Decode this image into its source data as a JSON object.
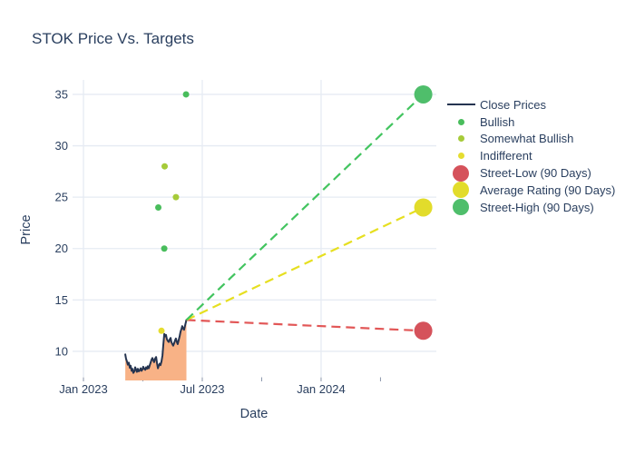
{
  "chart_data": {
    "type": "line",
    "title": "STOK Price Vs. Targets",
    "xlabel": "Date",
    "ylabel": "Price",
    "background": "#ffffff",
    "grid_color": "#e6ebf3",
    "tick_mark_color": "#8b96ab",
    "text_color": "#2a3f5f",
    "x_axis": {
      "range_months_from_jan2023": [
        -0.55,
        17.82
      ],
      "major_ticks": [
        {
          "m": 0,
          "label": "Jan 2023"
        },
        {
          "m": 6,
          "label": "Jul 2023"
        },
        {
          "m": 12,
          "label": "Jan 2024"
        }
      ],
      "minor_tick_months": [
        0,
        3,
        6,
        9,
        12,
        15
      ]
    },
    "y_axis": {
      "range": [
        7.52,
        36.41
      ],
      "ticks": [
        10,
        15,
        20,
        25,
        30,
        35
      ]
    },
    "close_prices": {
      "label": "Close Prices",
      "line_color": "#253450",
      "fill_color": "#f8b286",
      "points_month_price": [
        [
          2.11,
          9.7
        ],
        [
          2.15,
          9.3
        ],
        [
          2.2,
          9.0
        ],
        [
          2.24,
          8.7
        ],
        [
          2.29,
          8.9
        ],
        [
          2.34,
          8.4
        ],
        [
          2.38,
          8.6
        ],
        [
          2.43,
          8.1
        ],
        [
          2.47,
          8.3
        ],
        [
          2.52,
          7.9
        ],
        [
          2.57,
          8.05
        ],
        [
          2.61,
          8.45
        ],
        [
          2.66,
          8.2
        ],
        [
          2.7,
          8.0
        ],
        [
          2.75,
          8.3
        ],
        [
          2.79,
          8.05
        ],
        [
          2.84,
          8.15
        ],
        [
          2.89,
          8.35
        ],
        [
          2.93,
          8.1
        ],
        [
          2.98,
          8.25
        ],
        [
          3.02,
          8.5
        ],
        [
          3.07,
          8.3
        ],
        [
          3.12,
          8.2
        ],
        [
          3.16,
          8.45
        ],
        [
          3.21,
          8.3
        ],
        [
          3.25,
          8.55
        ],
        [
          3.3,
          8.35
        ],
        [
          3.34,
          8.6
        ],
        [
          3.39,
          8.9
        ],
        [
          3.44,
          9.2
        ],
        [
          3.48,
          9.35
        ],
        [
          3.53,
          9.1
        ],
        [
          3.57,
          8.95
        ],
        [
          3.62,
          9.3
        ],
        [
          3.67,
          9.45
        ],
        [
          3.71,
          8.9
        ],
        [
          3.76,
          8.35
        ],
        [
          3.8,
          8.6
        ],
        [
          3.85,
          8.8
        ],
        [
          3.89,
          8.65
        ],
        [
          3.94,
          9.0
        ],
        [
          3.99,
          9.6
        ],
        [
          4.03,
          10.6
        ],
        [
          4.08,
          11.7
        ],
        [
          4.12,
          11.45
        ],
        [
          4.17,
          11.6
        ],
        [
          4.21,
          11.2
        ],
        [
          4.26,
          11.0
        ],
        [
          4.31,
          10.9
        ],
        [
          4.35,
          11.15
        ],
        [
          4.4,
          11.3
        ],
        [
          4.44,
          10.9
        ],
        [
          4.49,
          10.7
        ],
        [
          4.53,
          10.55
        ],
        [
          4.58,
          10.8
        ],
        [
          4.63,
          11.1
        ],
        [
          4.67,
          11.25
        ],
        [
          4.72,
          10.9
        ],
        [
          4.76,
          10.7
        ],
        [
          4.81,
          11.1
        ],
        [
          4.86,
          11.5
        ],
        [
          4.9,
          11.9
        ],
        [
          4.95,
          12.2
        ],
        [
          4.99,
          12.45
        ],
        [
          5.04,
          12.2
        ],
        [
          5.08,
          12.1
        ],
        [
          5.13,
          12.5
        ],
        [
          5.2,
          13.05
        ]
      ]
    },
    "analyst_ratings": {
      "colors": {
        "Bullish": "#49bd5c",
        "Somewhat Bullish": "#a6cb39",
        "Indifferent": "#e5dd30"
      },
      "points": [
        {
          "rating": "Bullish",
          "m": 5.18,
          "price": 35
        },
        {
          "rating": "Somewhat Bullish",
          "m": 4.1,
          "price": 28
        },
        {
          "rating": "Somewhat Bullish",
          "m": 4.67,
          "price": 25
        },
        {
          "rating": "Bullish",
          "m": 3.78,
          "price": 24
        },
        {
          "rating": "Bullish",
          "m": 4.08,
          "price": 20
        },
        {
          "rating": "Indifferent",
          "m": 3.94,
          "price": 12
        }
      ]
    },
    "price_targets": {
      "origin": {
        "m": 5.2,
        "price": 13.05
      },
      "items": [
        {
          "label": "Street-Low (90 Days)",
          "m": 17.16,
          "price": 12,
          "marker_color": "#d5525b",
          "line_color": "#e25757"
        },
        {
          "label": "Average Rating (90 Days)",
          "m": 17.16,
          "price": 24,
          "marker_color": "#e2dc2b",
          "line_color": "#e6df20"
        },
        {
          "label": "Street-High (90 Days)",
          "m": 17.16,
          "price": 35,
          "marker_color": "#4fbe6b",
          "line_color": "#42c45f"
        }
      ]
    },
    "legend": {
      "items": [
        {
          "type": "line",
          "color": "#253450",
          "label": "Close Prices"
        },
        {
          "type": "dot",
          "color": "#49bd5c",
          "label": "Bullish"
        },
        {
          "type": "dot",
          "color": "#a6cb39",
          "label": "Somewhat Bullish"
        },
        {
          "type": "dot",
          "color": "#e5dd30",
          "label": "Indifferent"
        },
        {
          "type": "bigdot",
          "color": "#d5525b",
          "label": "Street-Low (90 Days)"
        },
        {
          "type": "bigdot",
          "color": "#e2dc2b",
          "label": "Average Rating (90 Days)"
        },
        {
          "type": "bigdot",
          "color": "#4fbe6b",
          "label": "Street-High (90 Days)"
        }
      ]
    }
  }
}
